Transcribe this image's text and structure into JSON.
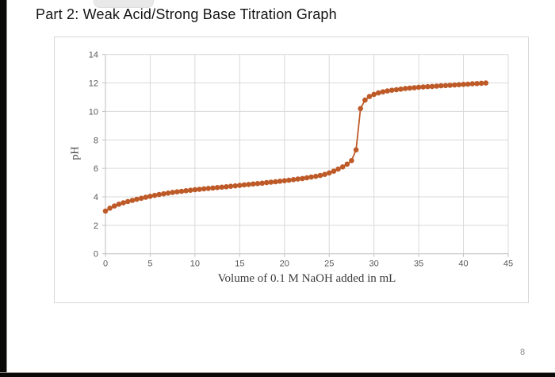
{
  "page": {
    "title": "Part 2: Weak Acid/Strong Base Titration Graph",
    "page_number": "8"
  },
  "colors": {
    "accent": "#BD5A28",
    "gridline": "#D9D9D9",
    "axis_line": "#BFBFBF",
    "tick_text": "#595959",
    "axis_title_text": "#3A3A3A"
  },
  "chart_data": {
    "type": "scatter",
    "title": "",
    "xlabel": "Volume of 0.1 M NaOH added in mL",
    "ylabel": "pH",
    "xlim": [
      0,
      45
    ],
    "ylim": [
      0,
      14
    ],
    "x_ticks": [
      0,
      5,
      10,
      15,
      20,
      25,
      30,
      35,
      40,
      45
    ],
    "y_ticks": [
      0,
      2,
      4,
      6,
      8,
      10,
      12,
      14
    ],
    "grid": true,
    "legend": "none",
    "series": [
      {
        "name": "pH vs volume of NaOH added",
        "marker_color": "#BD5A28",
        "line_color": "#BD5A28",
        "points": [
          [
            0,
            3.0
          ],
          [
            0.5,
            3.2
          ],
          [
            1,
            3.35
          ],
          [
            1.5,
            3.48
          ],
          [
            2,
            3.58
          ],
          [
            2.5,
            3.67
          ],
          [
            3,
            3.75
          ],
          [
            3.5,
            3.83
          ],
          [
            4,
            3.9
          ],
          [
            4.5,
            3.97
          ],
          [
            5,
            4.04
          ],
          [
            5.5,
            4.1
          ],
          [
            6,
            4.16
          ],
          [
            6.5,
            4.21
          ],
          [
            7,
            4.26
          ],
          [
            7.5,
            4.31
          ],
          [
            8,
            4.35
          ],
          [
            8.5,
            4.39
          ],
          [
            9,
            4.43
          ],
          [
            9.5,
            4.46
          ],
          [
            10,
            4.5
          ],
          [
            10.5,
            4.53
          ],
          [
            11,
            4.56
          ],
          [
            11.5,
            4.59
          ],
          [
            12,
            4.62
          ],
          [
            12.5,
            4.65
          ],
          [
            13,
            4.68
          ],
          [
            13.5,
            4.71
          ],
          [
            14,
            4.74
          ],
          [
            14.5,
            4.77
          ],
          [
            15,
            4.8
          ],
          [
            15.5,
            4.84
          ],
          [
            16,
            4.87
          ],
          [
            16.5,
            4.9
          ],
          [
            17,
            4.93
          ],
          [
            17.5,
            4.96
          ],
          [
            18,
            5.0
          ],
          [
            18.5,
            5.03
          ],
          [
            19,
            5.06
          ],
          [
            19.5,
            5.1
          ],
          [
            20,
            5.13
          ],
          [
            20.5,
            5.17
          ],
          [
            21,
            5.21
          ],
          [
            21.5,
            5.25
          ],
          [
            22,
            5.29
          ],
          [
            22.5,
            5.34
          ],
          [
            23,
            5.39
          ],
          [
            23.5,
            5.44
          ],
          [
            24,
            5.5
          ],
          [
            24.5,
            5.58
          ],
          [
            25,
            5.68
          ],
          [
            25.5,
            5.8
          ],
          [
            26,
            5.95
          ],
          [
            26.5,
            6.1
          ],
          [
            27,
            6.3
          ],
          [
            27.5,
            6.55
          ],
          [
            28,
            7.3
          ],
          [
            28.5,
            10.2
          ],
          [
            29,
            10.8
          ],
          [
            29.5,
            11.05
          ],
          [
            30,
            11.2
          ],
          [
            30.5,
            11.3
          ],
          [
            31,
            11.38
          ],
          [
            31.5,
            11.44
          ],
          [
            32,
            11.49
          ],
          [
            32.5,
            11.53
          ],
          [
            33,
            11.57
          ],
          [
            33.5,
            11.61
          ],
          [
            34,
            11.64
          ],
          [
            34.5,
            11.67
          ],
          [
            35,
            11.7
          ],
          [
            35.5,
            11.72
          ],
          [
            36,
            11.74
          ],
          [
            36.5,
            11.76
          ],
          [
            37,
            11.78
          ],
          [
            37.5,
            11.8
          ],
          [
            38,
            11.82
          ],
          [
            38.5,
            11.84
          ],
          [
            39,
            11.86
          ],
          [
            39.5,
            11.88
          ],
          [
            40,
            11.9
          ],
          [
            40.5,
            11.92
          ],
          [
            41,
            11.94
          ],
          [
            41.5,
            11.96
          ],
          [
            42,
            11.98
          ],
          [
            42.5,
            12.0
          ]
        ]
      }
    ]
  }
}
